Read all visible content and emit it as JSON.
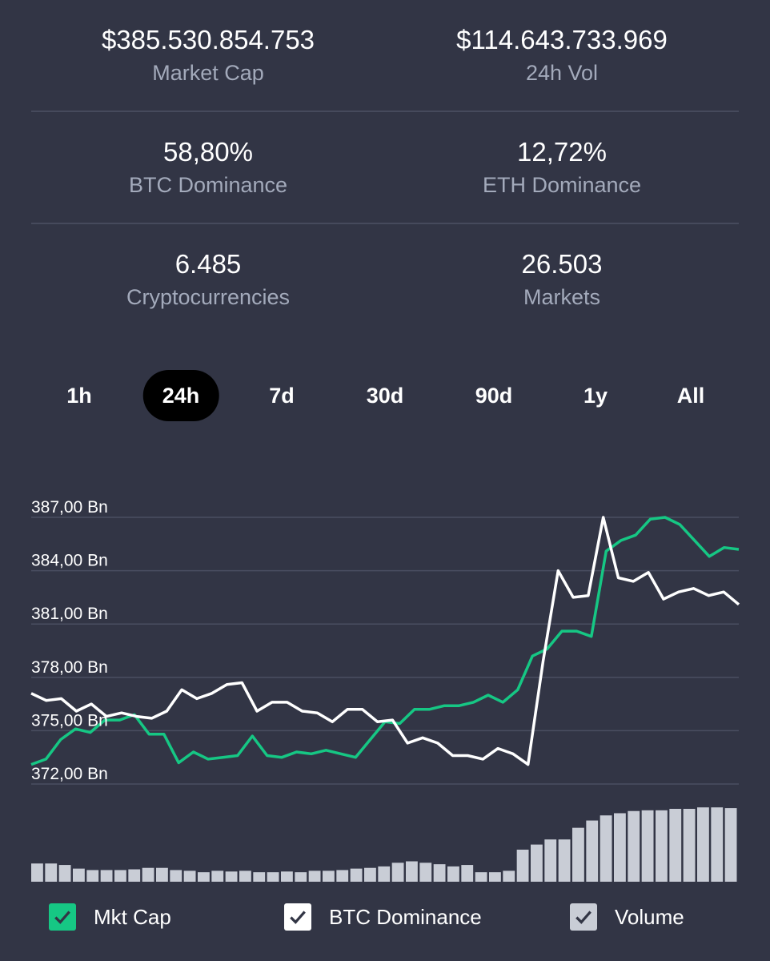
{
  "stats": [
    {
      "value": "$385.530.854.753",
      "label": "Market Cap"
    },
    {
      "value": "$114.643.733.969",
      "label": "24h Vol"
    },
    {
      "value": "58,80%",
      "label": "BTC Dominance"
    },
    {
      "value": "12,72%",
      "label": "ETH Dominance"
    },
    {
      "value": "6.485",
      "label": "Cryptocurrencies"
    },
    {
      "value": "26.503",
      "label": "Markets"
    }
  ],
  "tabs": [
    {
      "label": "1h",
      "active": false
    },
    {
      "label": "24h",
      "active": true
    },
    {
      "label": "7d",
      "active": false
    },
    {
      "label": "30d",
      "active": false
    },
    {
      "label": "90d",
      "active": false
    },
    {
      "label": "1y",
      "active": false
    },
    {
      "label": "All",
      "active": false
    }
  ],
  "legend": [
    {
      "label": "Mkt Cap",
      "checked": true,
      "color": "#16c784"
    },
    {
      "label": "BTC Dominance",
      "checked": true,
      "color": "#ffffff"
    },
    {
      "label": "Volume",
      "checked": true,
      "color": "#c9cdd6"
    }
  ],
  "chart_data": {
    "type": "line",
    "ylabel_ticks": [
      "387,00 Bn",
      "384,00 Bn",
      "381,00 Bn",
      "378,00 Bn",
      "375,00 Bn",
      "372,00 Bn"
    ],
    "y_ticks": [
      387,
      384,
      381,
      378,
      375,
      372
    ],
    "ylim": [
      372,
      387
    ],
    "grid": true,
    "series": [
      {
        "name": "Mkt Cap",
        "color": "#16c784",
        "values": [
          373.1,
          373.4,
          374.5,
          375.1,
          374.9,
          375.6,
          375.6,
          375.9,
          374.8,
          374.8,
          373.2,
          373.8,
          373.4,
          373.5,
          373.6,
          374.7,
          373.6,
          373.5,
          373.8,
          373.7,
          373.9,
          373.7,
          373.5,
          374.5,
          375.5,
          375.4,
          376.2,
          376.2,
          376.4,
          376.4,
          376.6,
          377.0,
          376.6,
          377.3,
          379.2,
          379.6,
          380.6,
          380.6,
          380.3,
          385.1,
          385.7,
          386.0,
          386.9,
          387.0,
          386.6,
          385.7,
          384.8,
          385.3,
          385.2
        ]
      },
      {
        "name": "BTC Dominance",
        "color": "#ffffff",
        "values": [
          377.1,
          376.7,
          376.8,
          376.1,
          376.5,
          375.8,
          376.0,
          375.8,
          375.7,
          376.1,
          377.3,
          376.8,
          377.1,
          377.6,
          377.7,
          376.1,
          376.6,
          376.6,
          376.1,
          376.0,
          375.5,
          376.2,
          376.2,
          375.5,
          375.6,
          374.3,
          374.6,
          374.3,
          373.6,
          373.6,
          373.4,
          374.0,
          373.7,
          373.1,
          378.9,
          384.0,
          382.5,
          382.6,
          387.0,
          383.6,
          383.4,
          383.9,
          382.4,
          382.8,
          383.0,
          382.6,
          382.8,
          382.1
        ]
      },
      {
        "name": "Volume",
        "color": "#c9cdd6",
        "values": [
          0.25,
          0.25,
          0.23,
          0.18,
          0.16,
          0.16,
          0.16,
          0.17,
          0.19,
          0.19,
          0.16,
          0.15,
          0.13,
          0.15,
          0.14,
          0.15,
          0.13,
          0.13,
          0.14,
          0.13,
          0.15,
          0.15,
          0.16,
          0.18,
          0.19,
          0.21,
          0.26,
          0.28,
          0.26,
          0.24,
          0.21,
          0.23,
          0.13,
          0.13,
          0.15,
          0.44,
          0.51,
          0.58,
          0.58,
          0.74,
          0.84,
          0.91,
          0.94,
          0.97,
          0.98,
          0.98,
          1.0,
          1.0,
          1.02,
          1.02,
          1.01
        ]
      }
    ]
  }
}
